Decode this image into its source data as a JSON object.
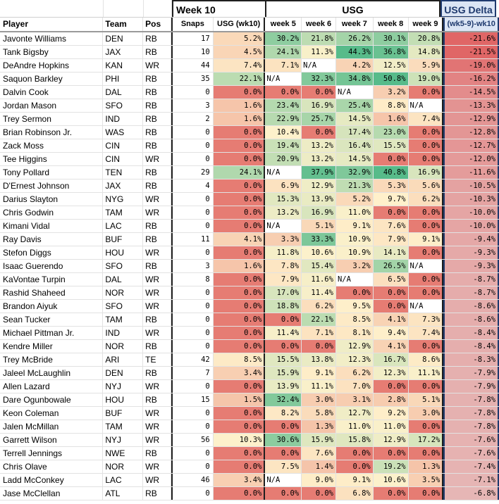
{
  "header": {
    "week10_group": "Week 10",
    "usg_group": "USG",
    "delta_group": "USG Delta",
    "columns": {
      "player": "Player",
      "team": "Team",
      "pos": "Pos",
      "snaps": "Snaps",
      "usg_wk10": "USG (wk10)",
      "week5": "week 5",
      "week6": "week 6",
      "week7": "week 7",
      "week8": "week 8",
      "week9": "week 9",
      "delta": "(wk5-9)-wk10"
    }
  },
  "colors": {
    "high_green": "#57bb8a",
    "mid_yellow": "#fff2cc",
    "low_red": "#e67c73",
    "delta_red": "#e06666",
    "delta_light": "#e6b8b7"
  },
  "rows": [
    {
      "player": "Javonte Williams",
      "team": "DEN",
      "pos": "RB",
      "snaps": "17",
      "wk10": "5.2%",
      "w5": "30.2%",
      "w6": "21.8%",
      "w7": "26.2%",
      "w8": "30.1%",
      "w9": "20.8%",
      "delta": "-21.6%"
    },
    {
      "player": "Tank Bigsby",
      "team": "JAX",
      "pos": "RB",
      "snaps": "10",
      "wk10": "4.5%",
      "w5": "24.1%",
      "w6": "11.3%",
      "w7": "44.3%",
      "w8": "36.8%",
      "w9": "14.8%",
      "delta": "-21.5%"
    },
    {
      "player": "DeAndre Hopkins",
      "team": "KAN",
      "pos": "WR",
      "snaps": "44",
      "wk10": "7.4%",
      "w5": "7.1%",
      "w6": "N/A",
      "w7": "4.2%",
      "w8": "12.5%",
      "w9": "5.9%",
      "delta": "-19.0%"
    },
    {
      "player": "Saquon Barkley",
      "team": "PHI",
      "pos": "RB",
      "snaps": "35",
      "wk10": "22.1%",
      "w5": "N/A",
      "w6": "32.3%",
      "w7": "34.8%",
      "w8": "50.8%",
      "w9": "19.0%",
      "delta": "-16.2%"
    },
    {
      "player": "Dalvin Cook",
      "team": "DAL",
      "pos": "RB",
      "snaps": "0",
      "wk10": "0.0%",
      "w5": "0.0%",
      "w6": "0.0%",
      "w7": "N/A",
      "w8": "3.2%",
      "w9": "0.0%",
      "delta": "-14.5%"
    },
    {
      "player": "Jordan Mason",
      "team": "SFO",
      "pos": "RB",
      "snaps": "3",
      "wk10": "1.6%",
      "w5": "23.4%",
      "w6": "16.9%",
      "w7": "25.4%",
      "w8": "8.8%",
      "w9": "N/A",
      "delta": "-13.3%"
    },
    {
      "player": "Trey Sermon",
      "team": "IND",
      "pos": "RB",
      "snaps": "2",
      "wk10": "1.6%",
      "w5": "22.9%",
      "w6": "25.7%",
      "w7": "14.5%",
      "w8": "1.6%",
      "w9": "7.4%",
      "delta": "-12.9%"
    },
    {
      "player": "Brian Robinson Jr.",
      "team": "WAS",
      "pos": "RB",
      "snaps": "0",
      "wk10": "0.0%",
      "w5": "10.4%",
      "w6": "0.0%",
      "w7": "17.4%",
      "w8": "23.0%",
      "w9": "0.0%",
      "delta": "-12.8%"
    },
    {
      "player": "Zack Moss",
      "team": "CIN",
      "pos": "RB",
      "snaps": "0",
      "wk10": "0.0%",
      "w5": "19.4%",
      "w6": "13.2%",
      "w7": "16.4%",
      "w8": "15.5%",
      "w9": "0.0%",
      "delta": "-12.7%"
    },
    {
      "player": "Tee Higgins",
      "team": "CIN",
      "pos": "WR",
      "snaps": "0",
      "wk10": "0.0%",
      "w5": "20.9%",
      "w6": "13.2%",
      "w7": "14.5%",
      "w8": "0.0%",
      "w9": "0.0%",
      "delta": "-12.0%"
    },
    {
      "player": "Tony Pollard",
      "team": "TEN",
      "pos": "RB",
      "snaps": "29",
      "wk10": "24.1%",
      "w5": "N/A",
      "w6": "37.9%",
      "w7": "32.9%",
      "w8": "40.8%",
      "w9": "16.9%",
      "delta": "-11.6%"
    },
    {
      "player": "D'Ernest Johnson",
      "team": "JAX",
      "pos": "RB",
      "snaps": "4",
      "wk10": "0.0%",
      "w5": "6.9%",
      "w6": "12.9%",
      "w7": "21.3%",
      "w8": "5.3%",
      "w9": "5.6%",
      "delta": "-10.5%"
    },
    {
      "player": "Darius Slayton",
      "team": "NYG",
      "pos": "WR",
      "snaps": "0",
      "wk10": "0.0%",
      "w5": "15.3%",
      "w6": "13.9%",
      "w7": "5.2%",
      "w8": "9.7%",
      "w9": "6.2%",
      "delta": "-10.3%"
    },
    {
      "player": "Chris Godwin",
      "team": "TAM",
      "pos": "WR",
      "snaps": "0",
      "wk10": "0.0%",
      "w5": "13.2%",
      "w6": "16.9%",
      "w7": "11.0%",
      "w8": "0.0%",
      "w9": "0.0%",
      "delta": "-10.0%"
    },
    {
      "player": "Kimani Vidal",
      "team": "LAC",
      "pos": "RB",
      "snaps": "0",
      "wk10": "0.0%",
      "w5": "N/A",
      "w6": "5.1%",
      "w7": "9.1%",
      "w8": "7.6%",
      "w9": "0.0%",
      "delta": "-10.0%"
    },
    {
      "player": "Ray Davis",
      "team": "BUF",
      "pos": "RB",
      "snaps": "11",
      "wk10": "4.1%",
      "w5": "3.3%",
      "w6": "33.3%",
      "w7": "10.9%",
      "w8": "7.9%",
      "w9": "9.1%",
      "delta": "-9.4%"
    },
    {
      "player": "Stefon Diggs",
      "team": "HOU",
      "pos": "WR",
      "snaps": "0",
      "wk10": "0.0%",
      "w5": "11.8%",
      "w6": "10.6%",
      "w7": "10.9%",
      "w8": "14.1%",
      "w9": "0.0%",
      "delta": "-9.3%"
    },
    {
      "player": "Isaac Guerendo",
      "team": "SFO",
      "pos": "RB",
      "snaps": "3",
      "wk10": "1.6%",
      "w5": "7.8%",
      "w6": "15.4%",
      "w7": "3.2%",
      "w8": "26.5%",
      "w9": "N/A",
      "delta": "-9.3%"
    },
    {
      "player": "KaVontae Turpin",
      "team": "DAL",
      "pos": "WR",
      "snaps": "8",
      "wk10": "0.0%",
      "w5": "7.9%",
      "w6": "11.6%",
      "w7": "N/A",
      "w8": "6.5%",
      "w9": "0.0%",
      "delta": "-8.7%"
    },
    {
      "player": "Rashid Shaheed",
      "team": "NOR",
      "pos": "WR",
      "snaps": "0",
      "wk10": "0.0%",
      "w5": "17.0%",
      "w6": "11.4%",
      "w7": "0.0%",
      "w8": "0.0%",
      "w9": "0.0%",
      "delta": "-8.7%"
    },
    {
      "player": "Brandon Aiyuk",
      "team": "SFO",
      "pos": "WR",
      "snaps": "0",
      "wk10": "0.0%",
      "w5": "18.8%",
      "w6": "6.2%",
      "w7": "9.5%",
      "w8": "0.0%",
      "w9": "N/A",
      "delta": "-8.6%"
    },
    {
      "player": "Sean Tucker",
      "team": "TAM",
      "pos": "RB",
      "snaps": "0",
      "wk10": "0.0%",
      "w5": "0.0%",
      "w6": "22.1%",
      "w7": "8.5%",
      "w8": "4.1%",
      "w9": "7.3%",
      "delta": "-8.6%"
    },
    {
      "player": "Michael Pittman Jr.",
      "team": "IND",
      "pos": "WR",
      "snaps": "0",
      "wk10": "0.0%",
      "w5": "11.4%",
      "w6": "7.1%",
      "w7": "8.1%",
      "w8": "9.4%",
      "w9": "7.4%",
      "delta": "-8.4%"
    },
    {
      "player": "Kendre Miller",
      "team": "NOR",
      "pos": "RB",
      "snaps": "0",
      "wk10": "0.0%",
      "w5": "0.0%",
      "w6": "0.0%",
      "w7": "12.9%",
      "w8": "4.1%",
      "w9": "0.0%",
      "delta": "-8.4%"
    },
    {
      "player": "Trey McBride",
      "team": "ARI",
      "pos": "TE",
      "snaps": "42",
      "wk10": "8.5%",
      "w5": "15.5%",
      "w6": "13.8%",
      "w7": "12.3%",
      "w8": "16.7%",
      "w9": "8.6%",
      "delta": "-8.3%"
    },
    {
      "player": "Jaleel McLaughlin",
      "team": "DEN",
      "pos": "RB",
      "snaps": "7",
      "wk10": "3.4%",
      "w5": "15.9%",
      "w6": "9.1%",
      "w7": "6.2%",
      "w8": "12.3%",
      "w9": "11.1%",
      "delta": "-7.9%"
    },
    {
      "player": "Allen Lazard",
      "team": "NYJ",
      "pos": "WR",
      "snaps": "0",
      "wk10": "0.0%",
      "w5": "13.9%",
      "w6": "11.1%",
      "w7": "7.0%",
      "w8": "0.0%",
      "w9": "0.0%",
      "delta": "-7.9%"
    },
    {
      "player": "Dare Ogunbowale",
      "team": "HOU",
      "pos": "RB",
      "snaps": "15",
      "wk10": "1.5%",
      "w5": "32.4%",
      "w6": "3.0%",
      "w7": "3.1%",
      "w8": "2.8%",
      "w9": "5.1%",
      "delta": "-7.8%"
    },
    {
      "player": "Keon Coleman",
      "team": "BUF",
      "pos": "WR",
      "snaps": "0",
      "wk10": "0.0%",
      "w5": "8.2%",
      "w6": "5.8%",
      "w7": "12.7%",
      "w8": "9.2%",
      "w9": "3.0%",
      "delta": "-7.8%"
    },
    {
      "player": "Jalen McMillan",
      "team": "TAM",
      "pos": "WR",
      "snaps": "0",
      "wk10": "0.0%",
      "w5": "0.0%",
      "w6": "1.3%",
      "w7": "11.0%",
      "w8": "11.0%",
      "w9": "0.0%",
      "delta": "-7.8%"
    },
    {
      "player": "Garrett Wilson",
      "team": "NYJ",
      "pos": "WR",
      "snaps": "56",
      "wk10": "10.3%",
      "w5": "30.6%",
      "w6": "15.9%",
      "w7": "15.8%",
      "w8": "12.9%",
      "w9": "17.2%",
      "delta": "-7.6%"
    },
    {
      "player": "Terrell Jennings",
      "team": "NWE",
      "pos": "RB",
      "snaps": "0",
      "wk10": "0.0%",
      "w5": "0.0%",
      "w6": "7.6%",
      "w7": "0.0%",
      "w8": "0.0%",
      "w9": "0.0%",
      "delta": "-7.6%"
    },
    {
      "player": "Chris Olave",
      "team": "NOR",
      "pos": "WR",
      "snaps": "0",
      "wk10": "0.0%",
      "w5": "7.5%",
      "w6": "1.4%",
      "w7": "0.0%",
      "w8": "19.2%",
      "w9": "1.3%",
      "delta": "-7.4%"
    },
    {
      "player": "Ladd McConkey",
      "team": "LAC",
      "pos": "WR",
      "snaps": "46",
      "wk10": "3.4%",
      "w5": "N/A",
      "w6": "9.0%",
      "w7": "9.1%",
      "w8": "10.6%",
      "w9": "3.5%",
      "delta": "-7.1%"
    },
    {
      "player": "Jase McClellan",
      "team": "ATL",
      "pos": "RB",
      "snaps": "0",
      "wk10": "0.0%",
      "w5": "0.0%",
      "w6": "0.0%",
      "w7": "6.8%",
      "w8": "0.0%",
      "w9": "0.0%",
      "delta": "-6.8%"
    }
  ]
}
